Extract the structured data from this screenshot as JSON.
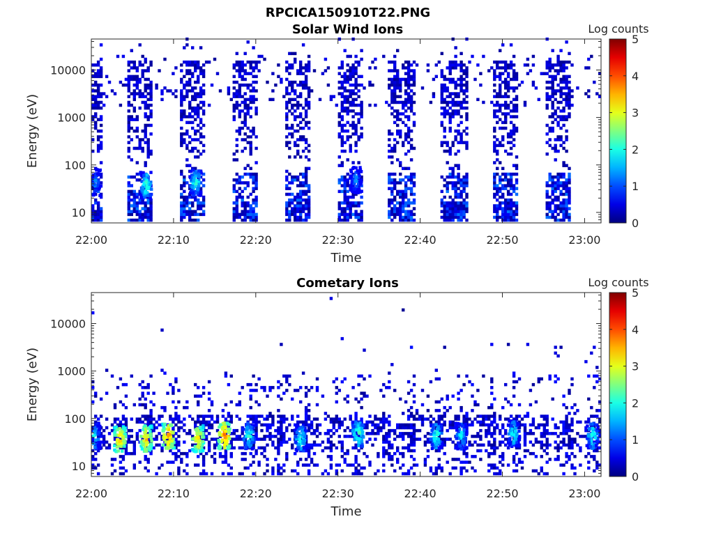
{
  "figure": {
    "file_title": "RPCICA150910T22.PNG"
  },
  "chart_data": [
    {
      "type": "heatmap",
      "title": "Solar Wind Ions",
      "xlabel": "Time",
      "ylabel": "Energy (eV)",
      "x_ticks": [
        "22:00",
        "22:10",
        "22:20",
        "22:30",
        "22:40",
        "22:50",
        "23:00"
      ],
      "x_range_minutes": [
        0,
        62
      ],
      "y_ticks": [
        "10",
        "100",
        "1000",
        "10000"
      ],
      "y_scale": "log",
      "y_range": [
        6,
        45000
      ],
      "colorbar": {
        "label": "Log counts",
        "range": [
          0,
          5
        ],
        "ticks": [
          "0",
          "1",
          "2",
          "3",
          "4",
          "5"
        ],
        "colormap": "jet"
      },
      "sweep_windows_minutes": [
        [
          0,
          1.2
        ],
        [
          4.2,
          7.3
        ],
        [
          10.7,
          13.7
        ],
        [
          17.0,
          20.2
        ],
        [
          23.3,
          26.5
        ],
        [
          29.7,
          32.9
        ],
        [
          36.0,
          39.2
        ],
        [
          42.3,
          45.5
        ],
        [
          48.7,
          51.8
        ],
        [
          55.0,
          58.2
        ]
      ],
      "hot_spots": [
        {
          "t_minutes": 6.5,
          "energy_eV": 35,
          "log_counts": 2.3
        },
        {
          "t_minutes": 12.5,
          "energy_eV": 40,
          "log_counts": 2.2
        },
        {
          "t_minutes": 32.0,
          "energy_eV": 45,
          "log_counts": 1.6
        },
        {
          "t_minutes": 0.3,
          "energy_eV": 40,
          "log_counts": 1.5
        }
      ]
    },
    {
      "type": "heatmap",
      "title": "Cometary Ions",
      "xlabel": "Time",
      "ylabel": "Energy (eV)",
      "x_ticks": [
        "22:00",
        "22:10",
        "22:20",
        "22:30",
        "22:40",
        "22:50",
        "23:00"
      ],
      "x_range_minutes": [
        0,
        62
      ],
      "y_ticks": [
        "10",
        "100",
        "1000",
        "10000"
      ],
      "y_scale": "log",
      "y_range": [
        6,
        45000
      ],
      "colorbar": {
        "label": "Log counts",
        "range": [
          0,
          5
        ],
        "ticks": [
          "0",
          "1",
          "2",
          "3",
          "4",
          "5"
        ],
        "colormap": "jet"
      },
      "hot_spots": [
        {
          "t_minutes": 3.3,
          "energy_eV": 35,
          "log_counts": 3.6
        },
        {
          "t_minutes": 6.5,
          "energy_eV": 35,
          "log_counts": 3.5
        },
        {
          "t_minutes": 9.2,
          "energy_eV": 40,
          "log_counts": 3.8
        },
        {
          "t_minutes": 12.8,
          "energy_eV": 35,
          "log_counts": 3.5
        },
        {
          "t_minutes": 16.0,
          "energy_eV": 40,
          "log_counts": 3.9
        },
        {
          "t_minutes": 19.0,
          "energy_eV": 40,
          "log_counts": 2.2
        },
        {
          "t_minutes": 25.3,
          "energy_eV": 35,
          "log_counts": 2.2
        },
        {
          "t_minutes": 32.3,
          "energy_eV": 45,
          "log_counts": 2.5
        },
        {
          "t_minutes": 41.8,
          "energy_eV": 40,
          "log_counts": 2.3
        },
        {
          "t_minutes": 44.8,
          "energy_eV": 40,
          "log_counts": 2.0
        },
        {
          "t_minutes": 51.2,
          "energy_eV": 45,
          "log_counts": 2.1
        },
        {
          "t_minutes": 60.8,
          "energy_eV": 40,
          "log_counts": 2.2
        },
        {
          "t_minutes": 0.2,
          "energy_eV": 40,
          "log_counts": 2.0
        }
      ]
    }
  ]
}
